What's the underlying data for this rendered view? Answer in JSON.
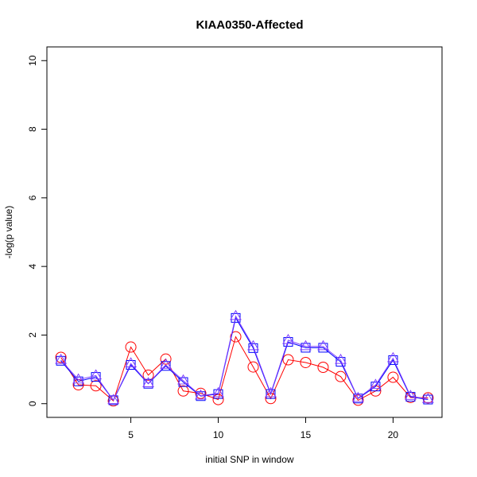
{
  "chart_data": {
    "type": "line",
    "title": "KIAA0350-Affected",
    "xlabel": "initial SNP in window",
    "ylabel": "-log(p value)",
    "xlim": [
      0.2,
      22.8
    ],
    "ylim": [
      -0.4,
      10.4
    ],
    "x_ticks": [
      5,
      10,
      15,
      20
    ],
    "y_ticks": [
      0,
      2,
      4,
      6,
      8,
      10
    ],
    "grid": false,
    "x": [
      1,
      2,
      3,
      4,
      5,
      6,
      7,
      8,
      9,
      10,
      11,
      12,
      13,
      14,
      15,
      16,
      17,
      18,
      19,
      20,
      21,
      22
    ],
    "series": [
      {
        "marker": "circle",
        "color": "#ff0000",
        "values": [
          1.35,
          0.55,
          0.52,
          0.08,
          1.65,
          0.83,
          1.3,
          0.37,
          0.3,
          0.12,
          1.95,
          1.07,
          0.15,
          1.28,
          1.2,
          1.06,
          0.79,
          0.1,
          0.37,
          0.77,
          0.18,
          0.17
        ]
      },
      {
        "marker": "square",
        "color": "#0000ff",
        "values": [
          1.25,
          0.65,
          0.78,
          0.1,
          1.13,
          0.58,
          1.1,
          0.63,
          0.22,
          0.28,
          2.5,
          1.62,
          0.28,
          1.8,
          1.63,
          1.63,
          1.22,
          0.15,
          0.5,
          1.27,
          0.2,
          0.12
        ]
      },
      {
        "marker": "triangle",
        "color": "#8040ff",
        "values": [
          1.27,
          0.7,
          0.82,
          0.1,
          1.17,
          0.59,
          1.13,
          0.67,
          0.23,
          0.3,
          2.55,
          1.67,
          0.3,
          1.85,
          1.67,
          1.67,
          1.27,
          0.16,
          0.54,
          1.32,
          0.22,
          0.13
        ]
      }
    ]
  }
}
